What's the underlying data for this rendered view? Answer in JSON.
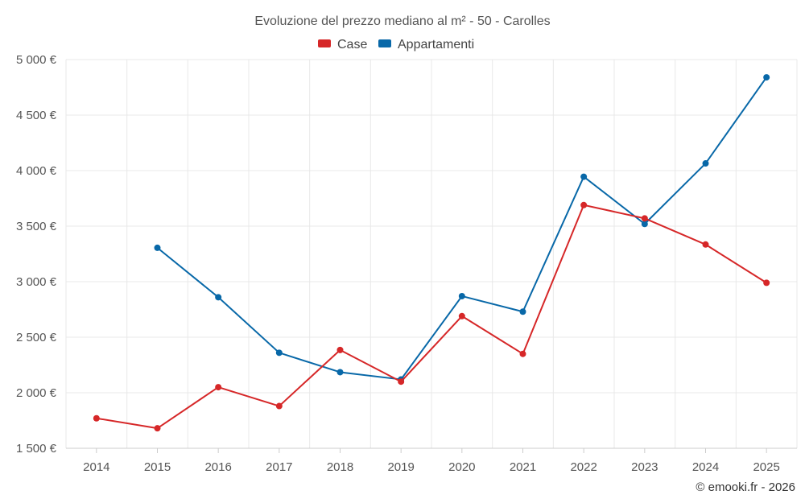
{
  "chart_data": {
    "type": "line",
    "title": "Evoluzione del prezzo mediano al m² - 50 - Carolles",
    "categories": [
      "2014",
      "2015",
      "2016",
      "2017",
      "2018",
      "2019",
      "2020",
      "2021",
      "2022",
      "2023",
      "2024",
      "2025"
    ],
    "series": [
      {
        "name": "Case",
        "color": "#d62728",
        "values": [
          1770,
          1680,
          2050,
          1880,
          2385,
          2100,
          2690,
          2350,
          3690,
          3570,
          3335,
          2990
        ]
      },
      {
        "name": "Appartamenti",
        "color": "#0868a8",
        "values": [
          null,
          3305,
          2860,
          2360,
          2185,
          2120,
          2870,
          2730,
          3945,
          3520,
          4065,
          4840
        ]
      }
    ],
    "ylim": [
      1500,
      5000
    ],
    "yticks": [
      1500,
      2000,
      2500,
      3000,
      3500,
      4000,
      4500,
      5000
    ],
    "ytick_labels": [
      "1 500 €",
      "2 000 €",
      "2 500 €",
      "3 000 €",
      "3 500 €",
      "4 000 €",
      "4 500 €",
      "5 000 €"
    ],
    "xlabel": "",
    "ylabel": "",
    "grid": true,
    "legend_position": "top-center",
    "credit": "© emooki.fr - 2026"
  }
}
